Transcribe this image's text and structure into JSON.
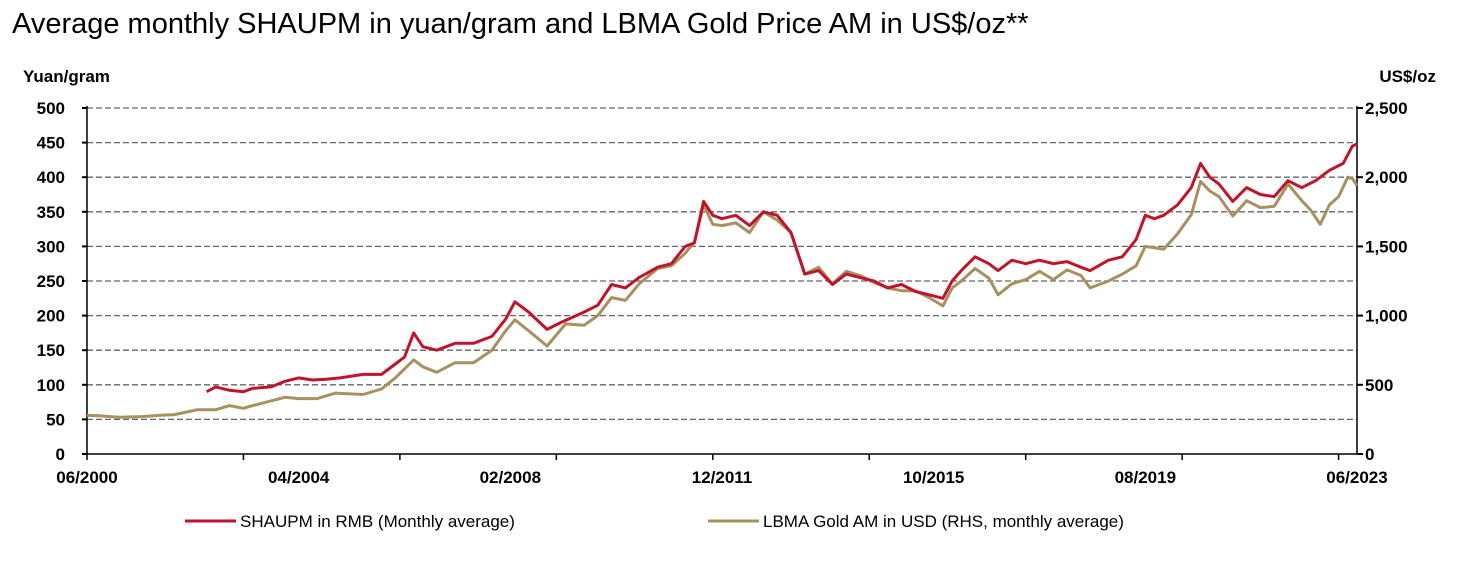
{
  "chart_data": {
    "type": "line",
    "title": "Average monthly SHAUPM in yuan/gram and LBMA Gold Price AM in US$/oz**",
    "ylabel_left": "Yuan/gram",
    "ylabel_right": "US$/oz",
    "ylim_left": [
      0,
      500
    ],
    "ylim_right": [
      0,
      2500
    ],
    "yticks_left": [
      "0",
      "50",
      "100",
      "150",
      "200",
      "250",
      "300",
      "350",
      "400",
      "450",
      "500"
    ],
    "yticks_right": [
      "0",
      "500",
      "1,000",
      "1,500",
      "2,000",
      "2,500"
    ],
    "xlim": [
      "2000-06",
      "2023-06"
    ],
    "xtick_labels": [
      {
        "date": "2000-06",
        "label": "06/2000"
      },
      {
        "date": "2004-04",
        "label": "04/2004"
      },
      {
        "date": "2008-02",
        "label": "02/2008"
      },
      {
        "date": "2011-12",
        "label": "12/2011"
      },
      {
        "date": "2015-10",
        "label": "10/2015"
      },
      {
        "date": "2019-08",
        "label": "08/2019"
      },
      {
        "date": "2023-06",
        "label": "06/2023"
      }
    ],
    "grid": true,
    "legend_placement": "bottom",
    "series": [
      {
        "name": "SHAUPM in RMB (Monthly average)",
        "axis": "left",
        "color": "#C0142B",
        "points": [
          [
            "2002-08",
            90
          ],
          [
            "2002-10",
            97
          ],
          [
            "2003-01",
            92
          ],
          [
            "2003-04",
            90
          ],
          [
            "2003-06",
            95
          ],
          [
            "2003-10",
            97
          ],
          [
            "2004-01",
            105
          ],
          [
            "2004-04",
            110
          ],
          [
            "2004-07",
            107
          ],
          [
            "2004-10",
            108
          ],
          [
            "2005-01",
            110
          ],
          [
            "2005-06",
            115
          ],
          [
            "2005-10",
            115
          ],
          [
            "2006-01",
            130
          ],
          [
            "2006-03",
            140
          ],
          [
            "2006-05",
            175
          ],
          [
            "2006-07",
            155
          ],
          [
            "2006-10",
            150
          ],
          [
            "2007-02",
            160
          ],
          [
            "2007-06",
            160
          ],
          [
            "2007-10",
            170
          ],
          [
            "2008-01",
            195
          ],
          [
            "2008-03",
            220
          ],
          [
            "2008-06",
            205
          ],
          [
            "2008-10",
            180
          ],
          [
            "2009-01",
            190
          ],
          [
            "2009-06",
            205
          ],
          [
            "2009-09",
            215
          ],
          [
            "2009-12",
            245
          ],
          [
            "2010-03",
            240
          ],
          [
            "2010-06",
            255
          ],
          [
            "2010-10",
            270
          ],
          [
            "2011-01",
            275
          ],
          [
            "2011-04",
            300
          ],
          [
            "2011-06",
            305
          ],
          [
            "2011-08",
            365
          ],
          [
            "2011-10",
            345
          ],
          [
            "2011-12",
            340
          ],
          [
            "2012-03",
            345
          ],
          [
            "2012-06",
            330
          ],
          [
            "2012-09",
            350
          ],
          [
            "2012-12",
            345
          ],
          [
            "2013-03",
            320
          ],
          [
            "2013-06",
            260
          ],
          [
            "2013-09",
            265
          ],
          [
            "2013-12",
            245
          ],
          [
            "2014-03",
            260
          ],
          [
            "2014-06",
            255
          ],
          [
            "2014-09",
            250
          ],
          [
            "2014-12",
            240
          ],
          [
            "2015-03",
            245
          ],
          [
            "2015-06",
            235
          ],
          [
            "2015-09",
            230
          ],
          [
            "2015-12",
            225
          ],
          [
            "2016-02",
            250
          ],
          [
            "2016-04",
            265
          ],
          [
            "2016-07",
            285
          ],
          [
            "2016-10",
            275
          ],
          [
            "2016-12",
            265
          ],
          [
            "2017-03",
            280
          ],
          [
            "2017-06",
            275
          ],
          [
            "2017-09",
            280
          ],
          [
            "2017-12",
            275
          ],
          [
            "2018-03",
            278
          ],
          [
            "2018-06",
            270
          ],
          [
            "2018-08",
            265
          ],
          [
            "2018-12",
            280
          ],
          [
            "2019-03",
            285
          ],
          [
            "2019-06",
            310
          ],
          [
            "2019-08",
            345
          ],
          [
            "2019-10",
            340
          ],
          [
            "2019-12",
            345
          ],
          [
            "2020-03",
            360
          ],
          [
            "2020-06",
            385
          ],
          [
            "2020-08",
            420
          ],
          [
            "2020-10",
            400
          ],
          [
            "2020-12",
            390
          ],
          [
            "2021-03",
            365
          ],
          [
            "2021-06",
            385
          ],
          [
            "2021-09",
            375
          ],
          [
            "2021-12",
            372
          ],
          [
            "2022-03",
            395
          ],
          [
            "2022-06",
            385
          ],
          [
            "2022-09",
            395
          ],
          [
            "2022-12",
            410
          ],
          [
            "2023-03",
            420
          ],
          [
            "2023-05",
            445
          ],
          [
            "2023-06",
            448
          ]
        ]
      },
      {
        "name": "LBMA Gold AM in USD (RHS, monthly average)",
        "axis": "right",
        "color": "#A89060",
        "points": [
          [
            "2000-06",
            280
          ],
          [
            "2000-09",
            275
          ],
          [
            "2001-01",
            265
          ],
          [
            "2001-06",
            270
          ],
          [
            "2001-10",
            280
          ],
          [
            "2002-01",
            285
          ],
          [
            "2002-06",
            320
          ],
          [
            "2002-10",
            320
          ],
          [
            "2003-01",
            350
          ],
          [
            "2003-04",
            330
          ],
          [
            "2003-06",
            350
          ],
          [
            "2003-09",
            375
          ],
          [
            "2004-01",
            410
          ],
          [
            "2004-04",
            400
          ],
          [
            "2004-08",
            400
          ],
          [
            "2004-12",
            440
          ],
          [
            "2005-06",
            430
          ],
          [
            "2005-10",
            470
          ],
          [
            "2006-01",
            550
          ],
          [
            "2006-05",
            680
          ],
          [
            "2006-07",
            630
          ],
          [
            "2006-10",
            590
          ],
          [
            "2007-02",
            660
          ],
          [
            "2007-06",
            660
          ],
          [
            "2007-10",
            750
          ],
          [
            "2008-01",
            890
          ],
          [
            "2008-03",
            970
          ],
          [
            "2008-06",
            890
          ],
          [
            "2008-10",
            780
          ],
          [
            "2009-02",
            940
          ],
          [
            "2009-06",
            930
          ],
          [
            "2009-09",
            1000
          ],
          [
            "2009-12",
            1130
          ],
          [
            "2010-03",
            1110
          ],
          [
            "2010-06",
            1230
          ],
          [
            "2010-10",
            1340
          ],
          [
            "2011-01",
            1360
          ],
          [
            "2011-04",
            1450
          ],
          [
            "2011-06",
            1530
          ],
          [
            "2011-08",
            1800
          ],
          [
            "2011-10",
            1660
          ],
          [
            "2011-12",
            1650
          ],
          [
            "2012-03",
            1670
          ],
          [
            "2012-06",
            1600
          ],
          [
            "2012-09",
            1750
          ],
          [
            "2012-12",
            1690
          ],
          [
            "2013-03",
            1600
          ],
          [
            "2013-06",
            1300
          ],
          [
            "2013-09",
            1350
          ],
          [
            "2013-12",
            1230
          ],
          [
            "2014-03",
            1320
          ],
          [
            "2014-06",
            1290
          ],
          [
            "2014-09",
            1240
          ],
          [
            "2014-12",
            1200
          ],
          [
            "2015-03",
            1180
          ],
          [
            "2015-06",
            1180
          ],
          [
            "2015-09",
            1130
          ],
          [
            "2015-12",
            1070
          ],
          [
            "2016-02",
            1200
          ],
          [
            "2016-04",
            1250
          ],
          [
            "2016-07",
            1340
          ],
          [
            "2016-10",
            1270
          ],
          [
            "2016-12",
            1150
          ],
          [
            "2017-03",
            1230
          ],
          [
            "2017-06",
            1260
          ],
          [
            "2017-09",
            1320
          ],
          [
            "2017-12",
            1260
          ],
          [
            "2018-03",
            1330
          ],
          [
            "2018-06",
            1290
          ],
          [
            "2018-08",
            1200
          ],
          [
            "2018-12",
            1250
          ],
          [
            "2019-03",
            1300
          ],
          [
            "2019-06",
            1360
          ],
          [
            "2019-08",
            1500
          ],
          [
            "2019-10",
            1490
          ],
          [
            "2019-12",
            1480
          ],
          [
            "2020-03",
            1590
          ],
          [
            "2020-06",
            1730
          ],
          [
            "2020-08",
            1970
          ],
          [
            "2020-10",
            1900
          ],
          [
            "2020-12",
            1860
          ],
          [
            "2021-03",
            1720
          ],
          [
            "2021-06",
            1830
          ],
          [
            "2021-09",
            1780
          ],
          [
            "2021-12",
            1790
          ],
          [
            "2022-03",
            1950
          ],
          [
            "2022-06",
            1830
          ],
          [
            "2022-08",
            1760
          ],
          [
            "2022-10",
            1660
          ],
          [
            "2022-12",
            1800
          ],
          [
            "2023-02",
            1860
          ],
          [
            "2023-04",
            2000
          ],
          [
            "2023-05",
            1990
          ],
          [
            "2023-06",
            1940
          ]
        ]
      }
    ]
  }
}
